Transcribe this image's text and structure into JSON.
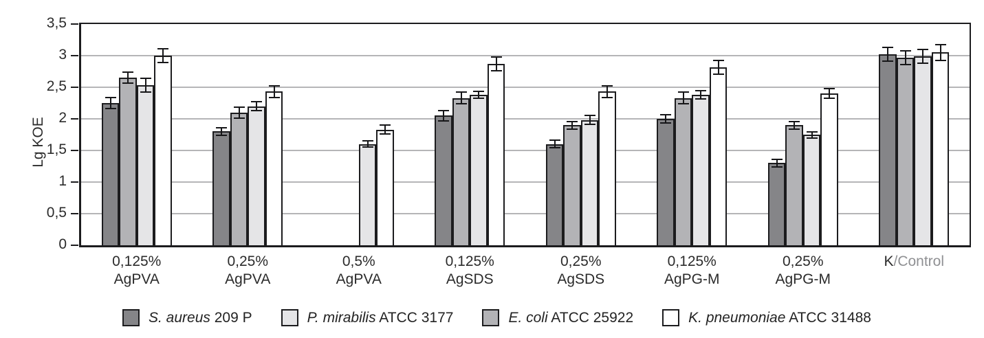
{
  "chart_data": {
    "type": "bar",
    "title": "",
    "xlabel": "",
    "ylabel": "Lg KOE",
    "ylim": [
      0,
      3.5
    ],
    "ytick_step": 0.5,
    "ytick_labels": [
      "0",
      "0,5",
      "1",
      "1,5",
      "2",
      "2,5",
      "3",
      "3,5"
    ],
    "grid": true,
    "legend_position": "bottom",
    "categories": [
      {
        "label": "0,125% AgPVA",
        "line1": "0,125%",
        "line2": "AgPVA"
      },
      {
        "label": "0,25% AgPVA",
        "line1": "0,25%",
        "line2": "AgPVA"
      },
      {
        "label": "0,5% AgPVA",
        "line1": "0,5%",
        "line2": "AgPVA"
      },
      {
        "label": "0,125% AgSDS",
        "line1": "0,125%",
        "line2": "AgSDS"
      },
      {
        "label": "0,25% AgSDS",
        "line1": "0,25%",
        "line2": "AgSDS"
      },
      {
        "label": "0,125% AgPG-M",
        "line1": "0,125%",
        "line2": "AgPG-M"
      },
      {
        "label": "0,25% AgPG-M",
        "line1": "0,25%",
        "line2": "AgPG-M"
      },
      {
        "label": "K/Control",
        "line1_parts": [
          {
            "t": "K",
            "muted": false
          },
          {
            "t": "/Control",
            "muted": true
          }
        ],
        "line2": ""
      }
    ],
    "series": [
      {
        "name": "S. aureus 209 P",
        "name_italic": "S. aureus",
        "name_rest": "209 P",
        "color": "#858588",
        "values": [
          2.25,
          1.8,
          null,
          2.05,
          1.6,
          2.0,
          1.3,
          3.02
        ],
        "errors": [
          0.1,
          0.07,
          null,
          0.09,
          0.07,
          0.08,
          0.07,
          0.12
        ]
      },
      {
        "name": "E. coli ATCC 25922",
        "name_italic": "E. coli",
        "name_rest": "ATCC 25922",
        "color": "#b3b3b6",
        "values": [
          2.65,
          2.1,
          null,
          2.33,
          1.9,
          2.33,
          1.9,
          2.97
        ],
        "errors": [
          0.1,
          0.1,
          null,
          0.1,
          0.07,
          0.1,
          0.07,
          0.12
        ]
      },
      {
        "name": "P. mirabilis ATCC 3177",
        "name_italic": "P. mirabilis",
        "name_rest": "ATCC 3177",
        "color": "#e5e5e7",
        "values": [
          2.53,
          2.2,
          1.6,
          2.38,
          1.98,
          2.38,
          1.75,
          2.99
        ],
        "errors": [
          0.12,
          0.08,
          0.06,
          0.07,
          0.08,
          0.08,
          0.06,
          0.12
        ]
      },
      {
        "name": "K. pneumoniae ATCC 31488",
        "name_italic": "K. pneumoniae",
        "name_rest": "ATCC 31488",
        "color": "#ffffff",
        "values": [
          3.0,
          2.43,
          1.83,
          2.87,
          2.43,
          2.82,
          2.4,
          3.05
        ],
        "errors": [
          0.12,
          0.1,
          0.08,
          0.12,
          0.1,
          0.12,
          0.09,
          0.14
        ]
      }
    ],
    "legend_order": [
      0,
      2,
      1,
      3
    ],
    "colors": {
      "bar_border": "#1c1c1e",
      "gridline": "#b5b5b7",
      "axis_text": "#2b2b2b",
      "muted_label": "#8f9093"
    }
  }
}
